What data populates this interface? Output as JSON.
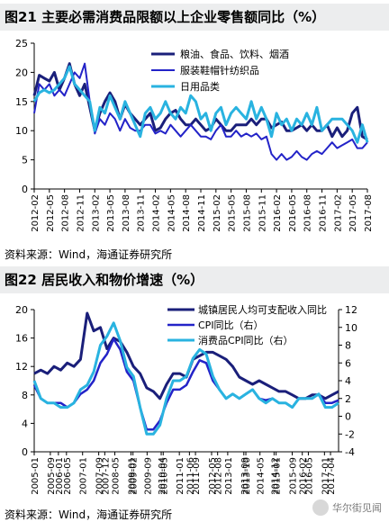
{
  "chart_data": [
    {
      "type": "line",
      "title": "图21 主要必需消费品限额以上企业零售额同比（%）",
      "ylim": [
        0,
        25
      ],
      "yticks": [
        0,
        5,
        10,
        15,
        20,
        25
      ],
      "x": [
        "2012-02",
        "2012-03",
        "2012-04",
        "2012-05",
        "2012-06",
        "2012-07",
        "2012-08",
        "2012-09",
        "2012-10",
        "2012-11",
        "2012-12",
        "2013-01",
        "2013-02",
        "2013-03",
        "2013-04",
        "2013-05",
        "2013-06",
        "2013-07",
        "2013-08",
        "2013-09",
        "2013-10",
        "2013-11",
        "2013-12",
        "2014-01",
        "2014-02",
        "2014-03",
        "2014-04",
        "2014-05",
        "2014-06",
        "2014-07",
        "2014-08",
        "2014-09",
        "2014-10",
        "2014-11",
        "2014-12",
        "2015-01",
        "2015-02",
        "2015-03",
        "2015-04",
        "2015-05",
        "2015-06",
        "2015-07",
        "2015-08",
        "2015-09",
        "2015-10",
        "2015-11",
        "2015-12",
        "2016-01",
        "2016-02",
        "2016-03",
        "2016-04",
        "2016-05",
        "2016-06",
        "2016-07",
        "2016-08",
        "2016-09",
        "2016-10",
        "2016-11",
        "2016-12",
        "2017-01",
        "2017-02",
        "2017-03",
        "2017-04",
        "2017-05",
        "2017-06",
        "2017-07",
        "2017-08"
      ],
      "xticklabels": [
        "2012-02",
        "2012-05",
        "2012-08",
        "2012-11",
        "2013-02",
        "2013-05",
        "2013-08",
        "2013-11",
        "2014-02",
        "2014-05",
        "2014-08",
        "2014-11",
        "2015-02",
        "2015-05",
        "2015-08",
        "2015-11",
        "2016-02",
        "2016-05",
        "2016-08",
        "2016-11",
        "2017-02",
        "2017-05",
        "2017-08"
      ],
      "legend_position": "top-right",
      "series": [
        {
          "name": "粮油、食品、饮料、烟酒",
          "color": "#1a1f7a",
          "values": [
            16,
            19.5,
            19,
            18.5,
            20,
            17,
            19,
            21.5,
            18,
            16,
            18,
            14,
            10,
            13,
            15,
            16.5,
            15,
            12,
            14.5,
            13,
            12,
            11,
            12,
            13,
            10,
            10.5,
            12,
            13,
            13.5,
            12,
            11,
            11,
            12,
            11,
            10,
            10.5,
            12,
            11,
            10,
            10,
            11,
            11,
            11,
            12,
            11,
            12,
            12,
            10.5,
            11,
            11.5,
            10,
            10,
            10.5,
            11,
            10,
            11,
            10,
            10,
            11,
            9,
            10.5,
            9,
            10,
            13,
            14,
            9,
            8.5
          ]
        },
        {
          "name": "服装鞋帽针纺织品",
          "color": "#2323c8",
          "values": [
            13,
            18,
            17,
            18,
            16,
            17,
            16,
            18,
            20,
            19,
            21.5,
            15,
            9.5,
            12,
            11,
            13,
            12,
            10,
            12,
            10.5,
            10,
            10,
            11,
            11,
            9.5,
            10,
            9.5,
            11,
            10,
            9,
            10,
            11,
            10,
            9,
            9,
            8.5,
            10,
            11,
            9,
            9,
            10,
            9,
            9.5,
            9,
            9.5,
            8.5,
            9,
            6,
            5,
            6,
            5,
            5.5,
            6.5,
            5.5,
            5,
            6,
            6.5,
            6,
            7,
            8,
            7,
            7.5,
            8,
            8.5,
            7,
            7,
            8
          ]
        },
        {
          "name": "日用品类",
          "color": "#29b3e0",
          "values": [
            15,
            16.5,
            17,
            16.5,
            17,
            18,
            19,
            21,
            18,
            17,
            16,
            15,
            10,
            14,
            13,
            16,
            14,
            12,
            15,
            13,
            11,
            9,
            13,
            14,
            12,
            13,
            15,
            13,
            12,
            14,
            13,
            16,
            15,
            12,
            13,
            10,
            13,
            14,
            11,
            13,
            14,
            13,
            12,
            15,
            12,
            14,
            12,
            9,
            13,
            11,
            12,
            10,
            12,
            11,
            13,
            11,
            14,
            10,
            11,
            12,
            12,
            12,
            11,
            10,
            8,
            11,
            8
          ]
        }
      ]
    },
    {
      "type": "line",
      "title": "图22 居民收入和物价增速（%）",
      "ylim": [
        0,
        20
      ],
      "yticks": [
        0,
        4,
        8,
        12,
        16,
        20
      ],
      "y2lim": [
        -4,
        12
      ],
      "y2ticks": [
        -4,
        -2,
        0,
        2,
        4,
        6,
        8,
        10,
        12
      ],
      "xticklabels": [
        "2005-01",
        "2005-09",
        "2006-05",
        "2007-01",
        "2007-09",
        "2008-05",
        "2009-01",
        "2009-09",
        "2010-05",
        "2011-01",
        "2011-09",
        "2012-05",
        "2013-01",
        "2013-09",
        "2014-05",
        "2015-01",
        "2015-09",
        "2016-05",
        "2017-01"
      ],
      "xticklabels_extra": [
        "2006-01",
        "2007-12",
        "2009-02",
        "2010-04",
        "2011-06",
        "2012-08",
        "2013-10",
        "2014-12",
        "2016-02",
        "2017-04"
      ],
      "legend_position": "top-right",
      "series": [
        {
          "name": "城镇居民人均可支配收入同比",
          "axis": "left",
          "color": "#1a1f7a",
          "values": [
            11,
            11.5,
            11,
            12,
            11.5,
            12.5,
            12,
            13,
            19.5,
            17,
            17.5,
            14.5,
            16,
            15.5,
            14,
            12,
            11,
            9,
            8.5,
            7.5,
            9.5,
            11,
            11,
            10.5,
            13,
            13.5,
            14,
            14,
            13.5,
            13,
            12,
            10.5,
            10,
            9.5,
            10,
            9.5,
            9,
            8.5,
            8.5,
            8,
            7.5,
            7.5,
            8,
            8,
            7.5,
            8,
            8.5
          ]
        },
        {
          "name": "CPI同比（右）",
          "axis": "right",
          "color": "#2323c8",
          "values": [
            3.5,
            2,
            1.5,
            1.5,
            1.5,
            1,
            1.5,
            2.5,
            3,
            4,
            6,
            7,
            8.7,
            7.5,
            5,
            4,
            1,
            -1.5,
            -1.5,
            -0.5,
            1.5,
            3,
            3,
            3.5,
            5,
            6.3,
            6,
            4,
            3,
            2,
            2.5,
            2,
            2.5,
            3,
            2,
            1.8,
            2,
            1.5,
            1.5,
            1,
            2,
            2,
            2,
            2.5,
            1.5,
            1.5,
            1.8
          ]
        },
        {
          "name": "消费品CPI同比（右）",
          "axis": "right",
          "color": "#29b3e0",
          "values": [
            4,
            2,
            1.5,
            1.5,
            1,
            1,
            1.5,
            3,
            3.5,
            5,
            8,
            9,
            10.5,
            8.5,
            5.5,
            4.5,
            1,
            -2,
            -2,
            -1,
            2,
            4,
            4,
            4.5,
            6.5,
            7.5,
            7,
            4.5,
            3,
            2,
            2.5,
            2,
            2.5,
            3,
            2,
            1.5,
            2,
            1.5,
            1.5,
            1,
            2,
            2,
            2,
            2.5,
            1,
            1,
            1.5
          ]
        }
      ]
    }
  ],
  "figure1": {
    "title": "图21 主要必需消费品限额以上企业零售额同比（%）",
    "source": "资料来源：Wind，海通证券研究所"
  },
  "figure2": {
    "title": "图22 居民收入和物价增速（%）",
    "source": "资料来源：Wind，海通证券研究所"
  },
  "watermark": {
    "text": "华尔街见闻"
  }
}
